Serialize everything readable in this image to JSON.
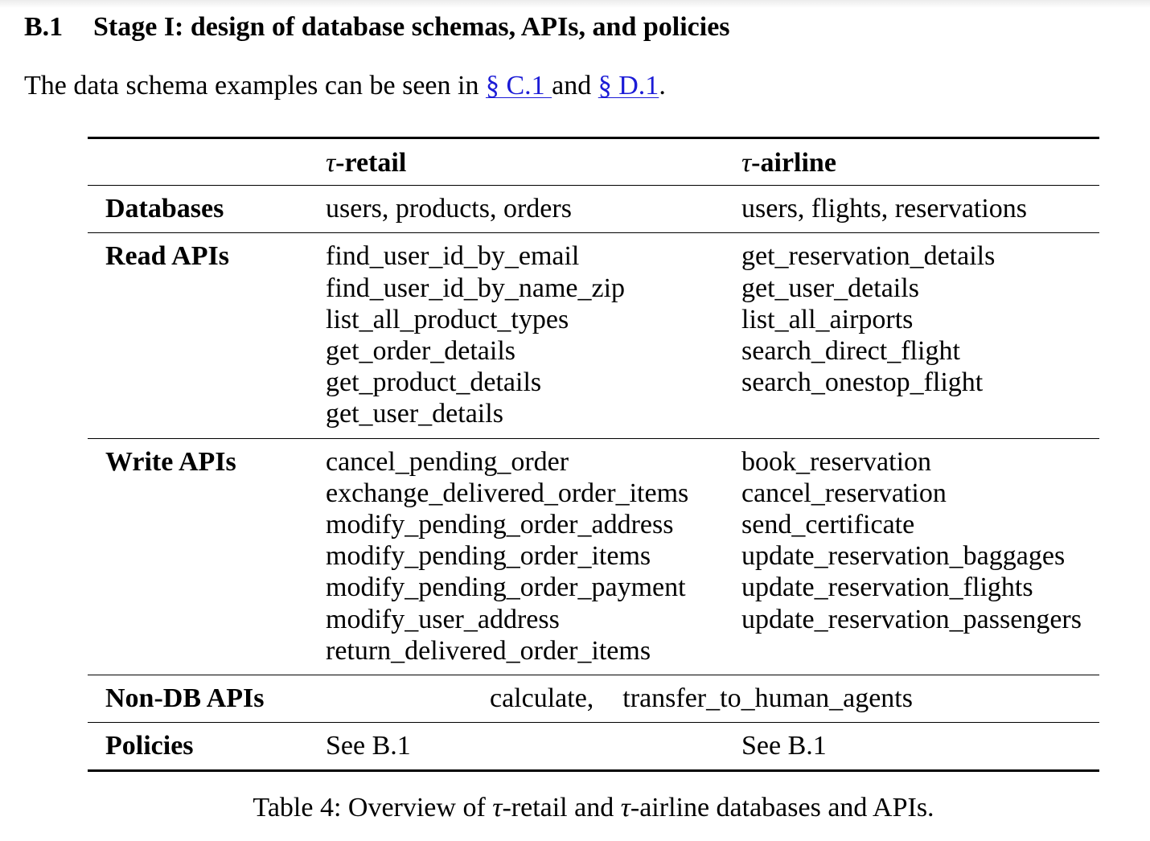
{
  "section": {
    "number": "B.1",
    "title": "Stage I: design of database schemas, APIs, and policies"
  },
  "intro": {
    "text_before": "The data schema examples can be seen in ",
    "link1": "§ C.1 ",
    "text_middle": "and ",
    "link2": "§ D.1",
    "text_after": "."
  },
  "table": {
    "columns": [
      {
        "symbol": "τ",
        "label": "-retail"
      },
      {
        "symbol": "τ",
        "label": "-airline"
      }
    ],
    "rows": {
      "databases": {
        "label": "Databases",
        "retail": "users, products, orders",
        "airline": "users, flights, reservations"
      },
      "read_apis": {
        "label": "Read APIs",
        "retail": [
          "find_user_id_by_email",
          "find_user_id_by_name_zip",
          "list_all_product_types",
          "get_order_details",
          "get_product_details",
          "get_user_details"
        ],
        "airline": [
          "get_reservation_details",
          "get_user_details",
          "list_all_airports",
          "search_direct_flight",
          "search_onestop_flight"
        ]
      },
      "write_apis": {
        "label": "Write APIs",
        "retail": [
          "cancel_pending_order",
          "exchange_delivered_order_items",
          "modify_pending_order_address",
          "modify_pending_order_items",
          "modify_pending_order_payment",
          "modify_user_address",
          "return_delivered_order_items"
        ],
        "airline": [
          "book_reservation",
          "cancel_reservation",
          "send_certificate",
          "update_reservation_baggages",
          "update_reservation_flights",
          "update_reservation_passengers"
        ]
      },
      "non_db_apis": {
        "label": "Non-DB APIs",
        "values": [
          "calculate,",
          "transfer_to_human_agents"
        ]
      },
      "policies": {
        "label": "Policies",
        "retail": "See B.1",
        "airline": "See B.1"
      }
    }
  },
  "caption": {
    "prefix": "Table 4: Overview of ",
    "tau1": "τ",
    "middle": "-retail and ",
    "tau2": "τ",
    "suffix": "-airline databases and APIs."
  },
  "colors": {
    "link": "#1b1bd6",
    "text": "#000000"
  }
}
